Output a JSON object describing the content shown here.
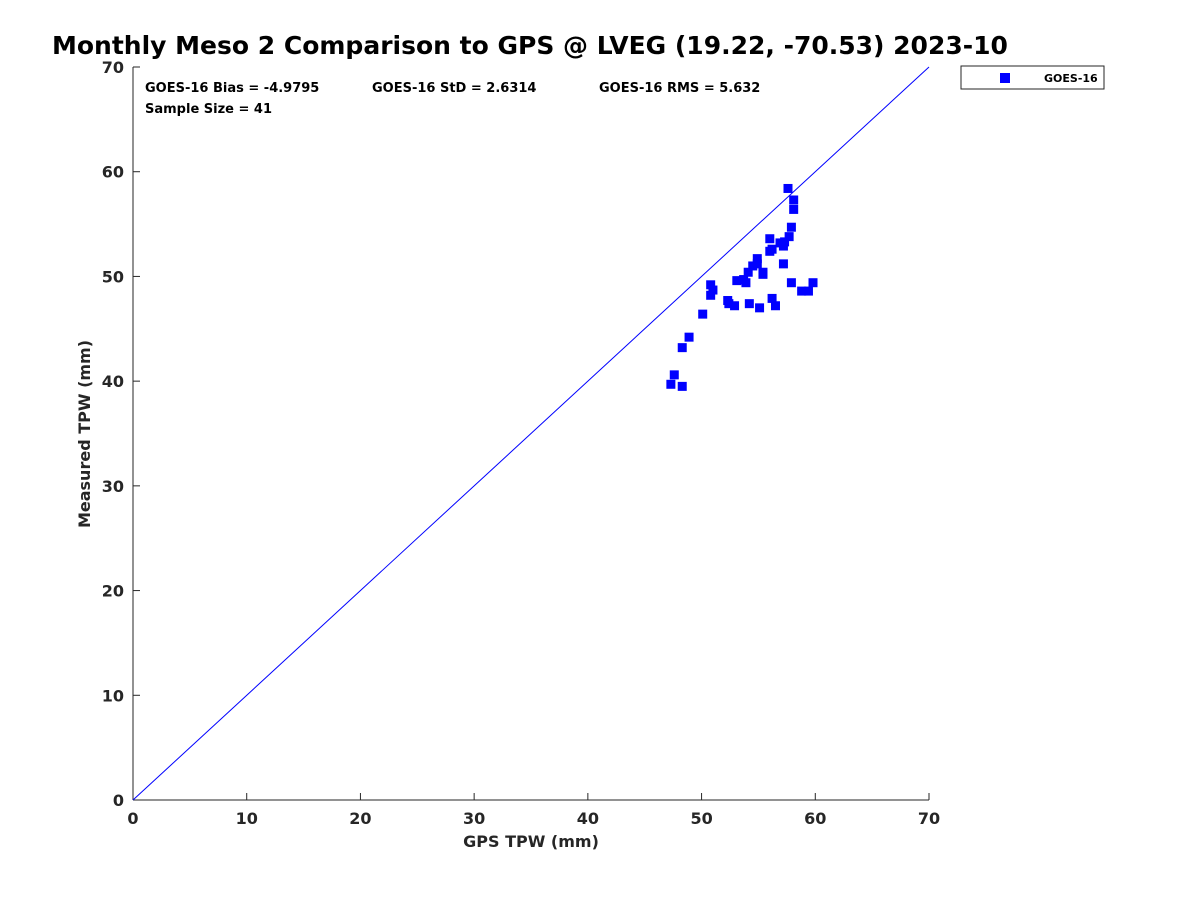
{
  "chart_data": {
    "type": "scatter",
    "title": "Monthly Meso 2 Comparison to GPS @ LVEG (19.22, -70.53) 2023-10",
    "xlabel": "GPS TPW (mm)",
    "ylabel": "Measured TPW (mm)",
    "xlim": [
      0,
      70
    ],
    "ylim": [
      0,
      70
    ],
    "xticks": [
      "0",
      "10",
      "20",
      "30",
      "40",
      "50",
      "60",
      "70"
    ],
    "yticks": [
      "0",
      "10",
      "20",
      "30",
      "40",
      "50",
      "60",
      "70"
    ],
    "grid": false,
    "legend_position": "top-right",
    "reference_line": {
      "type": "one-to-one",
      "x": [
        0,
        70
      ],
      "y": [
        0,
        70
      ],
      "color": "#0000ff"
    },
    "stats": {
      "bias": "GOES-16 Bias = -4.9795",
      "std": "GOES-16 StD = 2.6314",
      "rms": "GOES-16 RMS = 5.632",
      "sample_size": "Sample Size = 41"
    },
    "series": [
      {
        "name": "GOES-16",
        "color": "#0000ff",
        "marker": "square",
        "points": [
          [
            47.3,
            39.7
          ],
          [
            47.6,
            40.6
          ],
          [
            48.3,
            39.5
          ],
          [
            48.3,
            43.2
          ],
          [
            48.9,
            44.2
          ],
          [
            50.1,
            46.4
          ],
          [
            50.8,
            49.2
          ],
          [
            50.8,
            48.2
          ],
          [
            51.0,
            48.7
          ],
          [
            52.3,
            47.7
          ],
          [
            52.4,
            47.4
          ],
          [
            52.9,
            47.2
          ],
          [
            53.1,
            49.6
          ],
          [
            53.7,
            49.7
          ],
          [
            53.9,
            49.4
          ],
          [
            54.1,
            50.4
          ],
          [
            54.2,
            47.4
          ],
          [
            54.5,
            51.0
          ],
          [
            54.9,
            51.7
          ],
          [
            54.9,
            51.2
          ],
          [
            55.1,
            47.0
          ],
          [
            55.4,
            50.4
          ],
          [
            55.4,
            50.2
          ],
          [
            56.0,
            53.6
          ],
          [
            56.0,
            52.4
          ],
          [
            56.2,
            52.6
          ],
          [
            56.2,
            47.9
          ],
          [
            56.5,
            47.2
          ],
          [
            56.9,
            53.2
          ],
          [
            57.2,
            52.9
          ],
          [
            57.2,
            51.2
          ],
          [
            57.3,
            53.3
          ],
          [
            57.6,
            58.4
          ],
          [
            57.7,
            53.8
          ],
          [
            57.9,
            54.7
          ],
          [
            57.9,
            49.4
          ],
          [
            58.1,
            57.3
          ],
          [
            58.1,
            56.4
          ],
          [
            58.8,
            48.6
          ],
          [
            59.4,
            48.6
          ],
          [
            59.8,
            49.4
          ]
        ]
      }
    ]
  }
}
